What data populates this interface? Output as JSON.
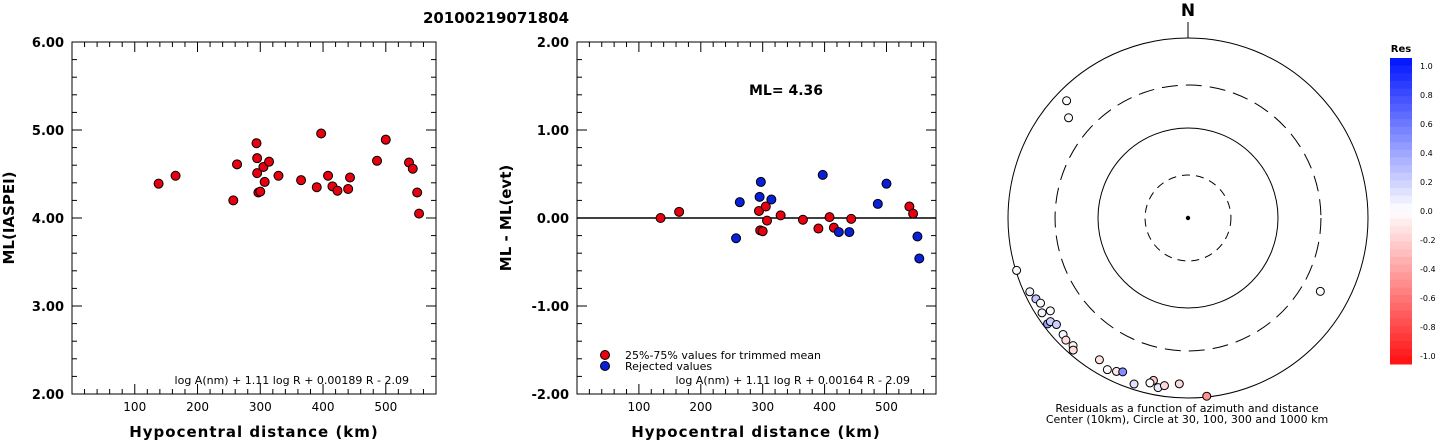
{
  "title": "20100219071804",
  "charts": [
    {
      "type": "scatter",
      "xlabel": "Hypocentral distance (km)",
      "ylabel": "ML(IASPEI)",
      "xlim": [
        0,
        580
      ],
      "ylim": [
        2.0,
        6.0
      ],
      "xticks": [
        100,
        200,
        300,
        400,
        500
      ],
      "yticks": [
        2.0,
        3.0,
        4.0,
        5.0,
        6.0
      ],
      "ytick_labels": [
        "2.00",
        "3.00",
        "4.00",
        "5.00",
        "6.00"
      ],
      "formula": "log A(nm) + 1.11 log R + 0.00189 R - 2.09",
      "points": [
        {
          "x": 138,
          "y": 4.39,
          "c": "#e8000f"
        },
        {
          "x": 165,
          "y": 4.48,
          "c": "#e8000f"
        },
        {
          "x": 257,
          "y": 4.2,
          "c": "#e8000f"
        },
        {
          "x": 263,
          "y": 4.61,
          "c": "#e8000f"
        },
        {
          "x": 294,
          "y": 4.85,
          "c": "#e8000f"
        },
        {
          "x": 295,
          "y": 4.68,
          "c": "#e8000f"
        },
        {
          "x": 295,
          "y": 4.51,
          "c": "#e8000f"
        },
        {
          "x": 297,
          "y": 4.29,
          "c": "#e8000f"
        },
        {
          "x": 300,
          "y": 4.3,
          "c": "#e8000f"
        },
        {
          "x": 305,
          "y": 4.58,
          "c": "#e8000f"
        },
        {
          "x": 307,
          "y": 4.41,
          "c": "#e8000f"
        },
        {
          "x": 314,
          "y": 4.64,
          "c": "#e8000f"
        },
        {
          "x": 329,
          "y": 4.48,
          "c": "#e8000f"
        },
        {
          "x": 365,
          "y": 4.43,
          "c": "#e8000f"
        },
        {
          "x": 390,
          "y": 4.35,
          "c": "#e8000f"
        },
        {
          "x": 397,
          "y": 4.96,
          "c": "#e8000f"
        },
        {
          "x": 408,
          "y": 4.48,
          "c": "#e8000f"
        },
        {
          "x": 415,
          "y": 4.36,
          "c": "#e8000f"
        },
        {
          "x": 423,
          "y": 4.31,
          "c": "#e8000f"
        },
        {
          "x": 440,
          "y": 4.33,
          "c": "#e8000f"
        },
        {
          "x": 443,
          "y": 4.46,
          "c": "#e8000f"
        },
        {
          "x": 486,
          "y": 4.65,
          "c": "#e8000f"
        },
        {
          "x": 500,
          "y": 4.89,
          "c": "#e8000f"
        },
        {
          "x": 537,
          "y": 4.63,
          "c": "#e8000f"
        },
        {
          "x": 543,
          "y": 4.56,
          "c": "#e8000f"
        },
        {
          "x": 550,
          "y": 4.29,
          "c": "#e8000f"
        },
        {
          "x": 553,
          "y": 4.05,
          "c": "#e8000f"
        }
      ]
    },
    {
      "type": "scatter",
      "xlabel": "Hypocentral distance (km)",
      "ylabel": "ML - ML(evt)",
      "xlim": [
        0,
        580
      ],
      "ylim": [
        -2.0,
        2.0
      ],
      "xticks": [
        100,
        200,
        300,
        400,
        500
      ],
      "yticks": [
        -2.0,
        -1.0,
        0.0,
        1.0,
        2.0
      ],
      "ytick_labels": [
        "-2.00",
        "-1.00",
        "0.00",
        "1.00",
        "2.00"
      ],
      "zero_line": 0.0,
      "ml_label": "ML=  4.36",
      "legend": [
        {
          "label": "25%-75% values for trimmed mean",
          "color": "#e8000f"
        },
        {
          "label": "Rejected values",
          "color": "#0a1fd8"
        }
      ],
      "formula": "log A(nm) + 1.11 log R + 0.00164 R - 2.09",
      "points": [
        {
          "x": 135,
          "y": 0.0,
          "c": "#e8000f"
        },
        {
          "x": 165,
          "y": 0.07,
          "c": "#e8000f"
        },
        {
          "x": 257,
          "y": -0.23,
          "c": "#0a1fd8"
        },
        {
          "x": 263,
          "y": 0.18,
          "c": "#0a1fd8"
        },
        {
          "x": 294,
          "y": 0.08,
          "c": "#e8000f"
        },
        {
          "x": 295,
          "y": 0.24,
          "c": "#0a1fd8"
        },
        {
          "x": 297,
          "y": 0.41,
          "c": "#0a1fd8"
        },
        {
          "x": 296,
          "y": -0.14,
          "c": "#e8000f"
        },
        {
          "x": 300,
          "y": -0.15,
          "c": "#e8000f"
        },
        {
          "x": 305,
          "y": 0.13,
          "c": "#e8000f"
        },
        {
          "x": 307,
          "y": -0.03,
          "c": "#e8000f"
        },
        {
          "x": 314,
          "y": 0.21,
          "c": "#0a1fd8"
        },
        {
          "x": 329,
          "y": 0.03,
          "c": "#e8000f"
        },
        {
          "x": 365,
          "y": -0.02,
          "c": "#e8000f"
        },
        {
          "x": 390,
          "y": -0.12,
          "c": "#e8000f"
        },
        {
          "x": 397,
          "y": 0.49,
          "c": "#0a1fd8"
        },
        {
          "x": 408,
          "y": 0.01,
          "c": "#e8000f"
        },
        {
          "x": 415,
          "y": -0.11,
          "c": "#e8000f"
        },
        {
          "x": 423,
          "y": -0.16,
          "c": "#0a1fd8"
        },
        {
          "x": 440,
          "y": -0.16,
          "c": "#0a1fd8"
        },
        {
          "x": 443,
          "y": -0.01,
          "c": "#e8000f"
        },
        {
          "x": 486,
          "y": 0.16,
          "c": "#0a1fd8"
        },
        {
          "x": 500,
          "y": 0.39,
          "c": "#0a1fd8"
        },
        {
          "x": 537,
          "y": 0.13,
          "c": "#e8000f"
        },
        {
          "x": 543,
          "y": 0.05,
          "c": "#e8000f"
        },
        {
          "x": 550,
          "y": -0.21,
          "c": "#0a1fd8"
        },
        {
          "x": 553,
          "y": -0.46,
          "c": "#0a1fd8"
        }
      ]
    }
  ],
  "polar": {
    "north_label": "N",
    "caption_line1": "Residuals as a function of azimuth and distance",
    "caption_line2": "Center (10km), Circle at 30, 100, 300 and 1000 km",
    "rings_km": [
      30,
      100,
      300,
      1000
    ],
    "colorbar_title": "Res",
    "colorbar_ticks": [
      "1.0",
      "0.8",
      "0.6",
      "0.4",
      "0.2",
      "0.0",
      "-0.2",
      "-0.4",
      "-0.6",
      "-0.8",
      "-1.0"
    ],
    "stations": [
      {
        "az": 314,
        "dist": 750,
        "res": 0.02
      },
      {
        "az": 310,
        "dist": 540,
        "res": 0.02
      },
      {
        "az": 253,
        "dist": 980,
        "res": 0.02
      },
      {
        "az": 245,
        "dist": 870,
        "res": 0.05
      },
      {
        "az": 242,
        "dist": 820,
        "res": 0.24
      },
      {
        "az": 237,
        "dist": 860,
        "res": 0.05
      },
      {
        "az": 240,
        "dist": 780,
        "res": 0.03
      },
      {
        "az": 233,
        "dist": 900,
        "res": 0.41
      },
      {
        "az": 233,
        "dist": 820,
        "res": 0.21
      },
      {
        "az": 231,
        "dist": 760,
        "res": 0.2
      },
      {
        "az": 227,
        "dist": 790,
        "res": 0.03
      },
      {
        "az": 225,
        "dist": 830,
        "res": -0.14
      },
      {
        "az": 222,
        "dist": 810,
        "res": -0.03
      },
      {
        "az": 221,
        "dist": 880,
        "res": -0.15
      },
      {
        "az": 236,
        "dist": 700,
        "res": 0.02
      },
      {
        "az": 212,
        "dist": 720,
        "res": -0.12
      },
      {
        "az": 208,
        "dist": 810,
        "res": -0.02
      },
      {
        "az": 205,
        "dist": 760,
        "res": -0.11
      },
      {
        "az": 203,
        "dist": 720,
        "res": 0.49
      },
      {
        "az": 198,
        "dist": 870,
        "res": 0.13
      },
      {
        "az": 192,
        "dist": 700,
        "res": -0.23
      },
      {
        "az": 193,
        "dist": 760,
        "res": 0.0
      },
      {
        "az": 190,
        "dist": 820,
        "res": 0.08
      },
      {
        "az": 188,
        "dist": 760,
        "res": -0.16
      },
      {
        "az": 183,
        "dist": 700,
        "res": -0.16
      },
      {
        "az": 174,
        "dist": 980,
        "res": -0.46
      },
      {
        "az": 119,
        "dist": 480,
        "res": 0.01
      }
    ]
  },
  "chart_data": [
    {
      "type": "scatter",
      "title": "20100219071804",
      "xlabel": "Hypocentral distance (km)",
      "ylabel": "ML(IASPEI)",
      "xlim": [
        0,
        580
      ],
      "ylim": [
        2.0,
        6.0
      ],
      "series": [
        {
          "values": [
            [
              138,
              4.39
            ],
            [
              165,
              4.48
            ],
            [
              257,
              4.2
            ],
            [
              263,
              4.61
            ],
            [
              294,
              4.85
            ],
            [
              295,
              4.68
            ],
            [
              295,
              4.51
            ],
            [
              297,
              4.29
            ],
            [
              300,
              4.3
            ],
            [
              305,
              4.58
            ],
            [
              307,
              4.41
            ],
            [
              314,
              4.64
            ],
            [
              329,
              4.48
            ],
            [
              365,
              4.43
            ],
            [
              390,
              4.35
            ],
            [
              397,
              4.96
            ],
            [
              408,
              4.48
            ],
            [
              415,
              4.36
            ],
            [
              423,
              4.31
            ],
            [
              440,
              4.33
            ],
            [
              443,
              4.46
            ],
            [
              486,
              4.65
            ],
            [
              500,
              4.89
            ],
            [
              537,
              4.63
            ],
            [
              543,
              4.56
            ],
            [
              550,
              4.29
            ],
            [
              553,
              4.05
            ]
          ]
        }
      ]
    },
    {
      "type": "scatter",
      "xlabel": "Hypocentral distance (km)",
      "ylabel": "ML - ML(evt)",
      "xlim": [
        0,
        580
      ],
      "ylim": [
        -2.0,
        2.0
      ],
      "series": [
        {
          "name": "25%-75% values for trimmed mean",
          "values": [
            [
              135,
              0.0
            ],
            [
              165,
              0.07
            ],
            [
              294,
              0.08
            ],
            [
              296,
              -0.14
            ],
            [
              300,
              -0.15
            ],
            [
              305,
              0.13
            ],
            [
              307,
              -0.03
            ],
            [
              329,
              0.03
            ],
            [
              365,
              -0.02
            ],
            [
              390,
              -0.12
            ],
            [
              408,
              0.01
            ],
            [
              415,
              -0.11
            ],
            [
              443,
              -0.01
            ],
            [
              537,
              0.13
            ],
            [
              543,
              0.05
            ]
          ]
        },
        {
          "name": "Rejected values",
          "values": [
            [
              257,
              -0.23
            ],
            [
              263,
              0.18
            ],
            [
              295,
              0.24
            ],
            [
              297,
              0.41
            ],
            [
              314,
              0.21
            ],
            [
              397,
              0.49
            ],
            [
              423,
              -0.16
            ],
            [
              440,
              -0.16
            ],
            [
              486,
              0.16
            ],
            [
              500,
              0.39
            ],
            [
              550,
              -0.21
            ],
            [
              553,
              -0.46
            ]
          ]
        }
      ]
    }
  ]
}
